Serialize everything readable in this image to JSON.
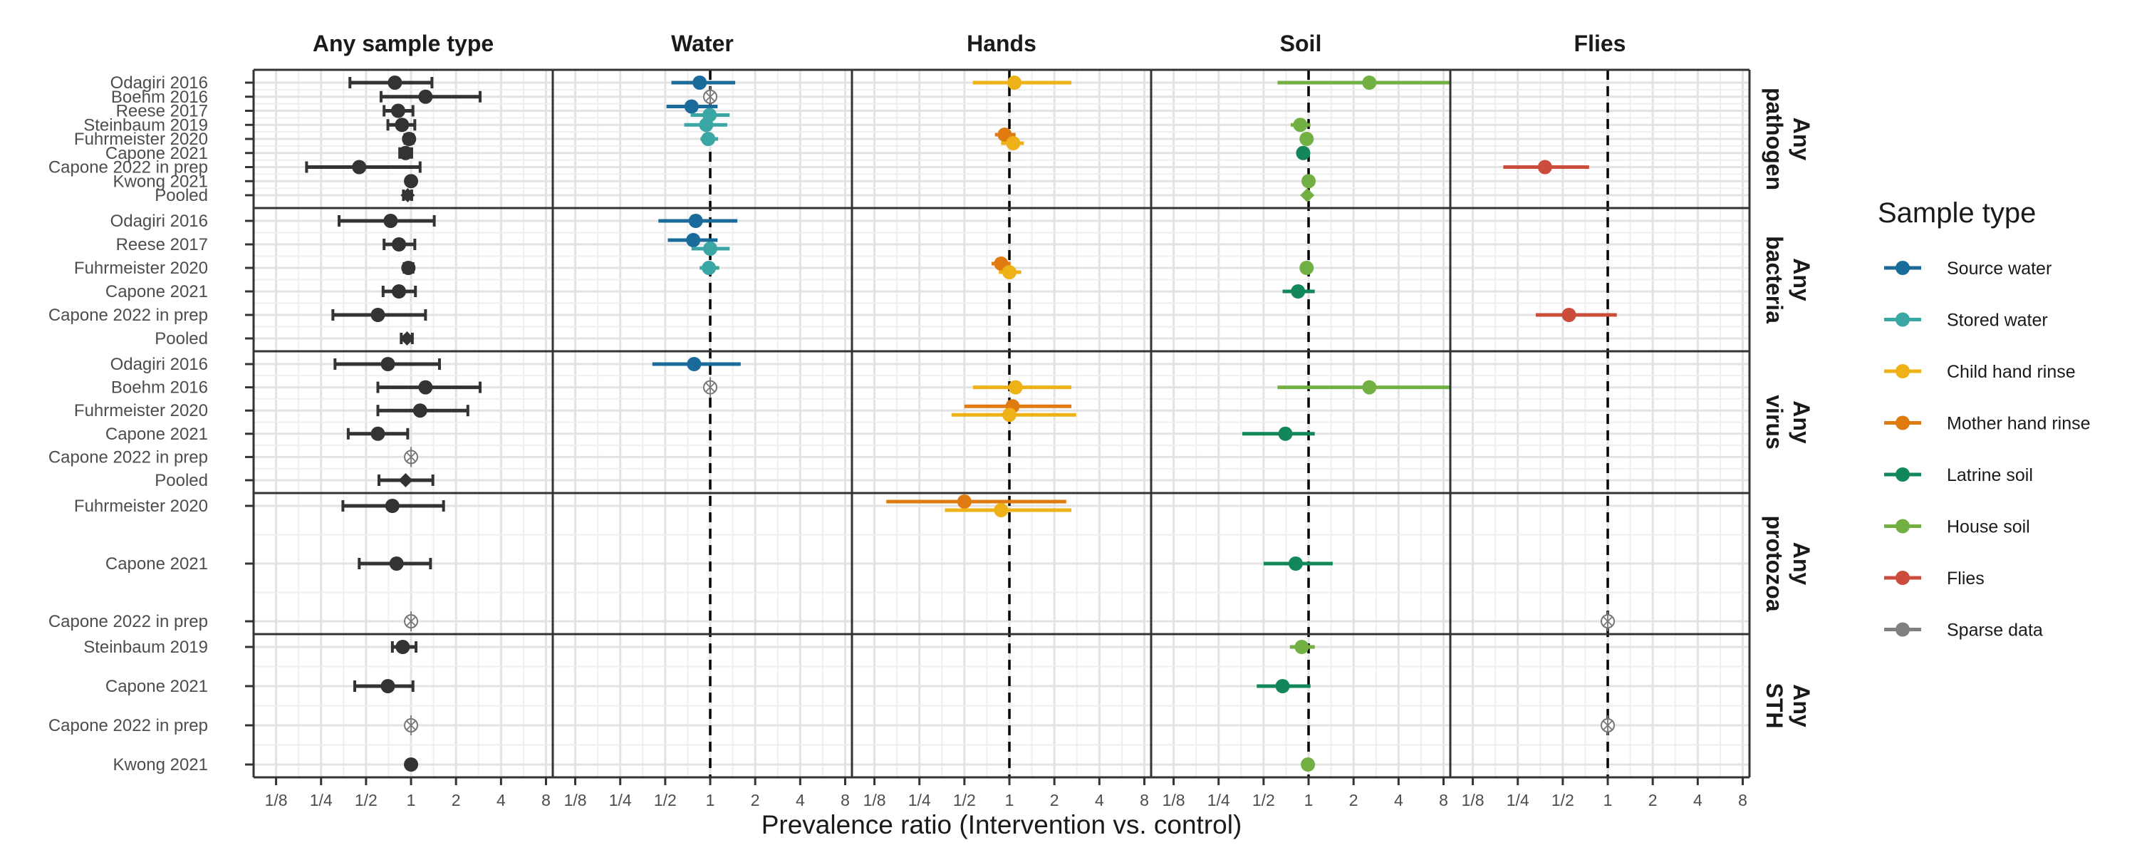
{
  "chart_data": {
    "type": "forest",
    "xlabel": "Prevalence ratio (Intervention vs. control)",
    "x_scale": "log2",
    "xlim": [
      0.0884,
      8.88
    ],
    "x_ticks": [
      0.125,
      0.25,
      0.5,
      1,
      2,
      4,
      8
    ],
    "x_tick_labels": [
      "1/8",
      "1/4",
      "1/2",
      "1",
      "2",
      "4",
      "8"
    ],
    "reference_line": 1,
    "grid": true,
    "legend_position": "right",
    "legend_title": "Sample type",
    "legend": [
      {
        "name": "Source water",
        "color": "#1a6b9a"
      },
      {
        "name": "Stored water",
        "color": "#3ba7a4"
      },
      {
        "name": "Child hand rinse",
        "color": "#efb118"
      },
      {
        "name": "Mother hand rinse",
        "color": "#e07b12"
      },
      {
        "name": "Latrine soil",
        "color": "#11875a"
      },
      {
        "name": "House soil",
        "color": "#72b043"
      },
      {
        "name": "Flies",
        "color": "#cc4c3b"
      },
      {
        "name": "Sparse data",
        "color": "#808080"
      }
    ],
    "columns": [
      "Any sample type",
      "Water",
      "Hands",
      "Soil",
      "Flies"
    ],
    "row_groups": [
      {
        "label": [
          "Any",
          "pathogen"
        ],
        "studies": [
          "Odagiri 2016",
          "Boehm 2016",
          "Reese 2017",
          "Steinbaum 2019",
          "Fuhrmeister 2020",
          "Capone 2021",
          "Capone 2022 in prep",
          "Kwong 2021",
          "Pooled"
        ],
        "estimates": [
          {
            "col": 0,
            "study": 0,
            "pr": 0.78,
            "lo": 0.39,
            "hi": 1.38
          },
          {
            "col": 0,
            "study": 1,
            "pr": 1.25,
            "lo": 0.63,
            "hi": 2.9
          },
          {
            "col": 0,
            "study": 2,
            "pr": 0.82,
            "lo": 0.66,
            "hi": 1.03
          },
          {
            "col": 0,
            "study": 3,
            "pr": 0.87,
            "lo": 0.7,
            "hi": 1.06
          },
          {
            "col": 0,
            "study": 4,
            "pr": 0.97,
            "lo": 0.91,
            "hi": 1.03
          },
          {
            "col": 0,
            "study": 5,
            "pr": 0.92,
            "lo": 0.84,
            "hi": 1.01
          },
          {
            "col": 0,
            "study": 6,
            "pr": 0.45,
            "lo": 0.2,
            "hi": 1.15
          },
          {
            "col": 0,
            "study": 7,
            "pr": 1.0,
            "lo": 0.97,
            "hi": 1.03
          },
          {
            "col": 0,
            "study": 8,
            "pr": 0.95,
            "lo": 0.89,
            "hi": 1.01,
            "pooled": true
          },
          {
            "col": 1,
            "study": 0,
            "pr": 0.85,
            "lo": 0.55,
            "hi": 1.47,
            "series": "Source water"
          },
          {
            "col": 1,
            "study": 1,
            "pr": 1.0,
            "sparse": true
          },
          {
            "col": 1,
            "study": 2,
            "pr": 0.75,
            "lo": 0.51,
            "hi": 1.12,
            "series": "Source water"
          },
          {
            "col": 1,
            "study": 2,
            "pr": 0.99,
            "lo": 0.74,
            "hi": 1.35,
            "series": "Stored water"
          },
          {
            "col": 1,
            "study": 3,
            "pr": 0.94,
            "lo": 0.67,
            "hi": 1.3,
            "series": "Stored water"
          },
          {
            "col": 1,
            "study": 4,
            "pr": 0.97,
            "lo": 0.86,
            "hi": 1.13,
            "series": "Stored water"
          },
          {
            "col": 2,
            "study": 0,
            "pr": 1.08,
            "lo": 0.57,
            "hi": 2.6,
            "series": "Child hand rinse"
          },
          {
            "col": 2,
            "study": 4,
            "pr": 0.93,
            "lo": 0.8,
            "hi": 1.1,
            "series": "Mother hand rinse"
          },
          {
            "col": 2,
            "study": 4,
            "pr": 1.06,
            "lo": 0.88,
            "hi": 1.25,
            "series": "Child hand rinse"
          },
          {
            "col": 3,
            "study": 0,
            "pr": 2.55,
            "lo": 0.62,
            "hi": 8.88,
            "series": "House soil"
          },
          {
            "col": 3,
            "study": 3,
            "pr": 0.88,
            "lo": 0.76,
            "hi": 1.03,
            "series": "House soil"
          },
          {
            "col": 3,
            "study": 4,
            "pr": 0.97,
            "lo": 0.9,
            "hi": 1.04,
            "series": "House soil"
          },
          {
            "col": 3,
            "study": 5,
            "pr": 0.92,
            "lo": 0.84,
            "hi": 1.01,
            "series": "Latrine soil"
          },
          {
            "col": 3,
            "study": 7,
            "pr": 1.0,
            "lo": 0.97,
            "hi": 1.03,
            "series": "House soil"
          },
          {
            "col": 3,
            "study": 8,
            "pr": 0.98,
            "lo": 0.93,
            "hi": 1.03,
            "pooled": true,
            "series": "House soil"
          },
          {
            "col": 4,
            "study": 6,
            "pr": 0.38,
            "lo": 0.2,
            "hi": 0.75,
            "series": "Flies"
          }
        ]
      },
      {
        "label": [
          "Any",
          "bacteria"
        ],
        "studies": [
          "Odagiri 2016",
          "Reese 2017",
          "Fuhrmeister 2020",
          "Capone 2021",
          "Capone 2022 in prep",
          "Pooled"
        ],
        "estimates": [
          {
            "col": 0,
            "study": 0,
            "pr": 0.73,
            "lo": 0.33,
            "hi": 1.43
          },
          {
            "col": 0,
            "study": 1,
            "pr": 0.83,
            "lo": 0.66,
            "hi": 1.06
          },
          {
            "col": 0,
            "study": 2,
            "pr": 0.96,
            "lo": 0.9,
            "hi": 1.03
          },
          {
            "col": 0,
            "study": 3,
            "pr": 0.83,
            "lo": 0.65,
            "hi": 1.07
          },
          {
            "col": 0,
            "study": 4,
            "pr": 0.6,
            "lo": 0.3,
            "hi": 1.25
          },
          {
            "col": 0,
            "study": 5,
            "pr": 0.94,
            "lo": 0.86,
            "hi": 1.02,
            "pooled": true
          },
          {
            "col": 1,
            "study": 0,
            "pr": 0.8,
            "lo": 0.45,
            "hi": 1.52,
            "series": "Source water"
          },
          {
            "col": 1,
            "study": 1,
            "pr": 0.77,
            "lo": 0.52,
            "hi": 1.12,
            "series": "Source water"
          },
          {
            "col": 1,
            "study": 1,
            "pr": 1.0,
            "lo": 0.75,
            "hi": 1.35,
            "series": "Stored water"
          },
          {
            "col": 1,
            "study": 2,
            "pr": 0.98,
            "lo": 0.85,
            "hi": 1.15,
            "series": "Stored water"
          },
          {
            "col": 2,
            "study": 2,
            "pr": 0.88,
            "lo": 0.76,
            "hi": 1.02,
            "series": "Mother hand rinse"
          },
          {
            "col": 2,
            "study": 2,
            "pr": 1.0,
            "lo": 0.85,
            "hi": 1.2,
            "series": "Child hand rinse"
          },
          {
            "col": 3,
            "study": 2,
            "pr": 0.97,
            "lo": 0.9,
            "hi": 1.04,
            "series": "House soil"
          },
          {
            "col": 3,
            "study": 3,
            "pr": 0.85,
            "lo": 0.67,
            "hi": 1.1,
            "series": "Latrine soil"
          },
          {
            "col": 4,
            "study": 4,
            "pr": 0.55,
            "lo": 0.33,
            "hi": 1.15,
            "series": "Flies"
          }
        ]
      },
      {
        "label": [
          "Any",
          "virus"
        ],
        "studies": [
          "Odagiri 2016",
          "Boehm 2016",
          "Fuhrmeister 2020",
          "Capone 2021",
          "Capone 2022 in prep",
          "Pooled"
        ],
        "estimates": [
          {
            "col": 0,
            "study": 0,
            "pr": 0.7,
            "lo": 0.31,
            "hi": 1.55
          },
          {
            "col": 0,
            "study": 1,
            "pr": 1.25,
            "lo": 0.6,
            "hi": 2.9
          },
          {
            "col": 0,
            "study": 2,
            "pr": 1.15,
            "lo": 0.6,
            "hi": 2.4
          },
          {
            "col": 0,
            "study": 3,
            "pr": 0.6,
            "lo": 0.38,
            "hi": 0.95
          },
          {
            "col": 0,
            "study": 4,
            "pr": 1.0,
            "sparse": true
          },
          {
            "col": 0,
            "study": 5,
            "pr": 0.92,
            "lo": 0.61,
            "hi": 1.4,
            "pooled": true
          },
          {
            "col": 1,
            "study": 0,
            "pr": 0.78,
            "lo": 0.41,
            "hi": 1.6,
            "series": "Source water"
          },
          {
            "col": 1,
            "study": 1,
            "pr": 1.0,
            "sparse": true
          },
          {
            "col": 2,
            "study": 1,
            "pr": 1.1,
            "lo": 0.57,
            "hi": 2.6,
            "series": "Child hand rinse"
          },
          {
            "col": 2,
            "study": 2,
            "pr": 1.05,
            "lo": 0.5,
            "hi": 2.6,
            "series": "Mother hand rinse"
          },
          {
            "col": 2,
            "study": 2,
            "pr": 1.0,
            "lo": 0.41,
            "hi": 2.8,
            "series": "Child hand rinse"
          },
          {
            "col": 3,
            "study": 1,
            "pr": 2.55,
            "lo": 0.62,
            "hi": 8.88,
            "series": "House soil"
          },
          {
            "col": 3,
            "study": 3,
            "pr": 0.7,
            "lo": 0.36,
            "hi": 1.1,
            "series": "Latrine soil"
          }
        ]
      },
      {
        "label": [
          "Any",
          "protozoa"
        ],
        "studies": [
          "Fuhrmeister 2020",
          "Capone 2021",
          "Capone 2022 in prep"
        ],
        "estimates": [
          {
            "col": 0,
            "study": 0,
            "pr": 0.75,
            "lo": 0.35,
            "hi": 1.65
          },
          {
            "col": 0,
            "study": 1,
            "pr": 0.8,
            "lo": 0.45,
            "hi": 1.35
          },
          {
            "col": 0,
            "study": 2,
            "pr": 1.0,
            "sparse": true
          },
          {
            "col": 2,
            "study": 0,
            "pr": 0.5,
            "lo": 0.15,
            "hi": 2.4,
            "series": "Mother hand rinse"
          },
          {
            "col": 2,
            "study": 0,
            "pr": 0.88,
            "lo": 0.37,
            "hi": 2.6,
            "series": "Child hand rinse"
          },
          {
            "col": 3,
            "study": 1,
            "pr": 0.82,
            "lo": 0.5,
            "hi": 1.45,
            "series": "Latrine soil"
          },
          {
            "col": 4,
            "study": 2,
            "pr": 1.0,
            "sparse": true
          }
        ]
      },
      {
        "label": [
          "Any",
          "STH"
        ],
        "studies": [
          "Steinbaum 2019",
          "Capone 2021",
          "Capone 2022 in prep",
          "Kwong 2021"
        ],
        "estimates": [
          {
            "col": 0,
            "study": 0,
            "pr": 0.88,
            "lo": 0.75,
            "hi": 1.08
          },
          {
            "col": 0,
            "study": 1,
            "pr": 0.7,
            "lo": 0.42,
            "hi": 1.03
          },
          {
            "col": 0,
            "study": 2,
            "pr": 1.0,
            "sparse": true
          },
          {
            "col": 0,
            "study": 3,
            "pr": 1.0,
            "lo": 0.96,
            "hi": 1.04
          },
          {
            "col": 3,
            "study": 0,
            "pr": 0.9,
            "lo": 0.75,
            "hi": 1.1,
            "series": "House soil"
          },
          {
            "col": 3,
            "study": 1,
            "pr": 0.67,
            "lo": 0.45,
            "hi": 1.03,
            "series": "Latrine soil"
          },
          {
            "col": 3,
            "study": 3,
            "pr": 0.99,
            "lo": 0.95,
            "hi": 1.03,
            "series": "House soil"
          },
          {
            "col": 4,
            "study": 2,
            "pr": 1.0,
            "sparse": true
          }
        ]
      }
    ]
  }
}
